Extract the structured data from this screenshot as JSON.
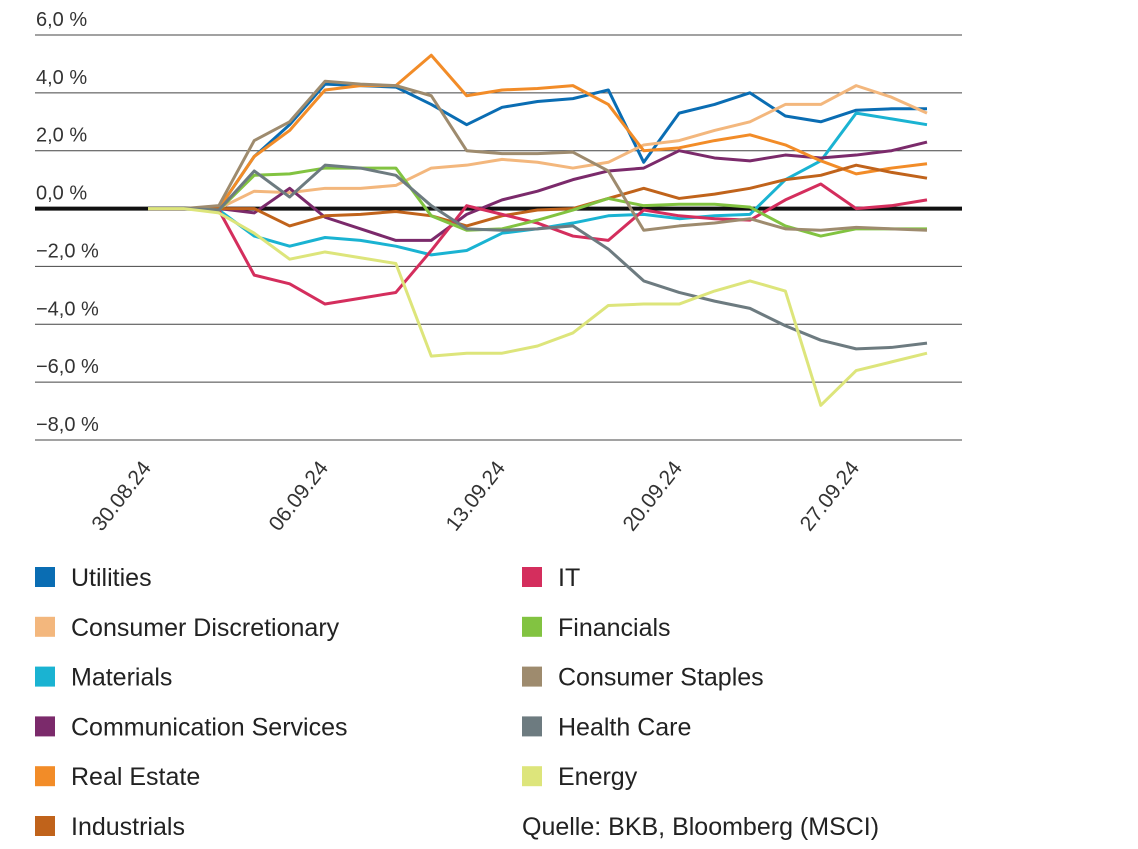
{
  "chart_data": {
    "type": "line",
    "categories": [
      "30.08.24",
      null,
      null,
      null,
      null,
      "06.09.24",
      null,
      null,
      null,
      null,
      "13.09.24",
      null,
      null,
      null,
      null,
      "20.09.24",
      null,
      null,
      null,
      null,
      "27.09.24",
      null,
      null
    ],
    "ylim": [
      -8,
      6
    ],
    "yticks": [
      {
        "value": 6,
        "label": "6,0 %"
      },
      {
        "value": 4,
        "label": "4,0 %"
      },
      {
        "value": 2,
        "label": "2,0 %"
      },
      {
        "value": 0,
        "label": "0,0 %"
      },
      {
        "value": -2,
        "label": "−2,0 %"
      },
      {
        "value": -4,
        "label": "−4,0 %"
      },
      {
        "value": -6,
        "label": "−6,0 %"
      },
      {
        "value": -8,
        "label": "−8,0 %"
      }
    ],
    "grid": true,
    "series": [
      {
        "name": "Utilities",
        "color": "#0a6db3",
        "values": [
          0,
          0,
          0,
          1.8,
          2.9,
          4.3,
          4.25,
          4.2,
          3.6,
          2.9,
          3.5,
          3.7,
          3.8,
          4.1,
          1.6,
          3.3,
          3.6,
          4.0,
          3.2,
          3.0,
          3.4,
          3.45,
          3.45
        ]
      },
      {
        "name": "Consumer Discretionary",
        "color": "#f3b77d",
        "values": [
          0,
          0,
          0,
          0.6,
          0.55,
          0.7,
          0.7,
          0.8,
          1.4,
          1.5,
          1.7,
          1.6,
          1.4,
          1.6,
          2.2,
          2.35,
          2.7,
          3.0,
          3.6,
          3.6,
          4.25,
          3.85,
          3.3
        ]
      },
      {
        "name": "Materials",
        "color": "#1ab3d2",
        "values": [
          0,
          0,
          -0.05,
          -0.95,
          -1.3,
          -1.0,
          -1.1,
          -1.3,
          -1.6,
          -1.45,
          -0.85,
          -0.7,
          -0.5,
          -0.25,
          -0.2,
          -0.35,
          -0.25,
          -0.2,
          1.0,
          1.65,
          3.3,
          3.1,
          2.9
        ]
      },
      {
        "name": "Communication Services",
        "color": "#7b2a6b",
        "values": [
          0,
          0,
          0,
          -0.15,
          0.7,
          -0.3,
          -0.7,
          -1.1,
          -1.1,
          -0.2,
          0.3,
          0.6,
          1.0,
          1.3,
          1.4,
          2.0,
          1.75,
          1.65,
          1.85,
          1.75,
          1.85,
          2.0,
          2.3
        ]
      },
      {
        "name": "Real Estate",
        "color": "#f28c28",
        "values": [
          0,
          0,
          0,
          1.8,
          2.7,
          4.1,
          4.25,
          4.25,
          5.3,
          3.9,
          4.1,
          4.15,
          4.25,
          3.6,
          2.0,
          2.1,
          2.35,
          2.55,
          2.2,
          1.65,
          1.2,
          1.4,
          1.55
        ]
      },
      {
        "name": "Industrials",
        "color": "#c0631b",
        "values": [
          0,
          0,
          0,
          0,
          -0.6,
          -0.25,
          -0.2,
          -0.1,
          -0.25,
          -0.6,
          -0.25,
          -0.05,
          0,
          0.35,
          0.7,
          0.35,
          0.5,
          0.7,
          1.0,
          1.15,
          1.5,
          1.25,
          1.05
        ]
      },
      {
        "name": "IT",
        "color": "#d42e5d",
        "values": [
          0,
          0,
          -0.05,
          -2.3,
          -2.6,
          -3.3,
          -3.1,
          -2.9,
          -1.45,
          0.1,
          -0.2,
          -0.5,
          -0.95,
          -1.1,
          -0.05,
          -0.25,
          -0.35,
          -0.4,
          0.3,
          0.85,
          0,
          0.1,
          0.3
        ]
      },
      {
        "name": "Financials",
        "color": "#82c341",
        "values": [
          0,
          0,
          -0.05,
          1.15,
          1.2,
          1.4,
          1.4,
          1.4,
          -0.25,
          -0.75,
          -0.7,
          -0.4,
          -0.05,
          0.35,
          0.1,
          0.15,
          0.15,
          0.05,
          -0.6,
          -0.95,
          -0.7,
          -0.7,
          -0.7
        ]
      },
      {
        "name": "Consumer Staples",
        "color": "#9e8b6e",
        "values": [
          0,
          0,
          0.1,
          2.35,
          3.0,
          4.4,
          4.3,
          4.25,
          3.9,
          2.0,
          1.9,
          1.9,
          1.95,
          1.3,
          -0.75,
          -0.6,
          -0.5,
          -0.35,
          -0.7,
          -0.75,
          -0.65,
          -0.7,
          -0.75
        ]
      },
      {
        "name": "Health Care",
        "color": "#6d7b80",
        "values": [
          0,
          0,
          -0.05,
          1.3,
          0.4,
          1.5,
          1.4,
          1.15,
          0.1,
          -0.7,
          -0.75,
          -0.7,
          -0.6,
          -1.4,
          -2.5,
          -2.9,
          -3.2,
          -3.45,
          -4.05,
          -4.55,
          -4.85,
          -4.8,
          -4.65
        ]
      },
      {
        "name": "Energy",
        "color": "#dde57b",
        "values": [
          0,
          0,
          -0.15,
          -0.85,
          -1.75,
          -1.5,
          -1.7,
          -1.9,
          -5.1,
          -5.0,
          -5.0,
          -4.75,
          -4.3,
          -3.35,
          -3.3,
          -3.3,
          -2.85,
          -2.5,
          -2.85,
          -6.8,
          -5.6,
          -5.3,
          -5.0
        ]
      }
    ],
    "source": "Quelle: BKB, Bloomberg (MSCI)"
  }
}
